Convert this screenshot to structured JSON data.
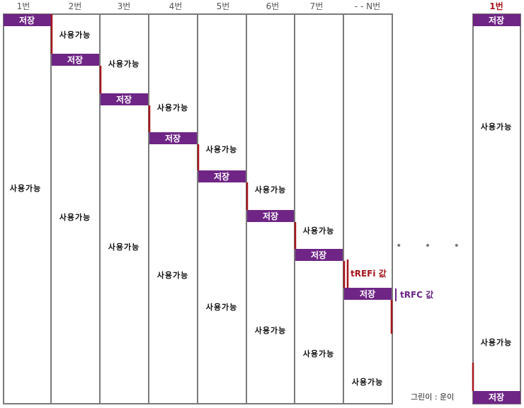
{
  "headers": [
    "1번",
    "2번",
    "3번",
    "4번",
    "5번",
    "6번",
    "7번",
    "- - N번"
  ],
  "last_header": "1번",
  "store_label": "저장",
  "available_label": "사용가능",
  "trefi_label": "tREFi 값",
  "trfc_label": "tRFC 값",
  "ellipsis": "• • •",
  "credit": "그린이 : 운이",
  "colors": {
    "store": "#6f2585",
    "refresh_line": "#a5151b",
    "trfc_line": "#6a2485",
    "column_border": "#7a7a7a"
  }
}
